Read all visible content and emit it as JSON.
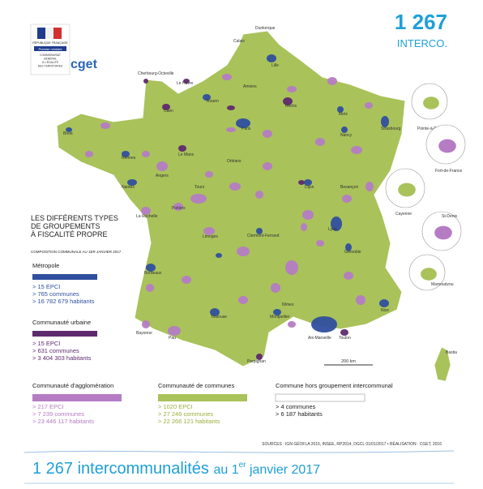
{
  "header": {
    "logo": {
      "republic": "RÉPUBLIQUE FRANÇAISE",
      "ministry": "Premier ministre",
      "agency": [
        "COMMISSARIAT",
        "GÉNÉRAL",
        "À L'ÉGALITÉ",
        "DES TERRITOIRES"
      ]
    },
    "brand": "cget",
    "count": "1 267",
    "count_label": "INTERCO."
  },
  "legend": {
    "title": [
      "LES  DIFFÉRENTS TYPES",
      "DE  GROUPEMENTS",
      "À FISCALITÉ PROPRE"
    ],
    "subtitle": "COMPOSITION COMMUNALE AU 1ER JANVIER 2017",
    "categories": [
      {
        "name": "Métropole",
        "color": "#2f4f9e",
        "lines": [
          "> 15 EPCI",
          "> 765 communes",
          "> 16 782 679 habitants"
        ]
      },
      {
        "name": "Communauté urbaine",
        "color": "#5e2a6e",
        "lines": [
          "> 15 EPCI",
          "> 631 communes",
          "> 3 404 303 habitants"
        ]
      },
      {
        "name": "Communauté d'agglomération",
        "color": "#b57cc4",
        "lines": [
          "> 217 EPCI",
          "> 7 239 communes",
          "> 23 446 117 habitants"
        ]
      },
      {
        "name": "Communauté de communes",
        "color": "#a9c25a",
        "lines": [
          "> 1020 EPCI",
          "> 27 246 communes",
          "> 22 266 121 habitants"
        ]
      },
      {
        "name": "Commune hors groupement intercommunal",
        "color": "#ffffff",
        "lines": [
          "> 4 communes",
          "> 6 187 habitants"
        ]
      }
    ]
  },
  "map": {
    "cities": [
      "Dunkerque",
      "Calais",
      "Lille",
      "Amiens",
      "Rouen",
      "Le Havre",
      "Caen",
      "Cherbourg-Octeville",
      "Brest",
      "Rennes",
      "Nantes",
      "Angers",
      "Le Mans",
      "Tours",
      "Orléans",
      "Paris",
      "Reims",
      "Metz",
      "Nancy",
      "Strasbourg",
      "Dijon",
      "Besançon",
      "Lyon",
      "Grenoble",
      "Clermont-Ferrand",
      "Limoges",
      "Poitiers",
      "La Rochelle",
      "Bordeaux",
      "Toulouse",
      "Montpellier",
      "Nîmes",
      "Aix-Marseille",
      "Toulon",
      "Nice",
      "Perpignan",
      "Pau",
      "Bayonne",
      "Bastia"
    ],
    "overseas": [
      "Pointe-à-Pitre",
      "Fort-de-France",
      "Cayenne",
      "St-Denis",
      "Mamoudzou"
    ],
    "scale": "200 km"
  },
  "sources": "SOURCES : IGN GÉOFLA 2015, INSEE, RP2014, DGCL 01/01/2017 • RÉALISATION : CGET, 2016",
  "footer": {
    "strong": "1 267 intercommunalités",
    "mid": "au 1",
    "sup": "er",
    "end": " janvier 2017"
  }
}
